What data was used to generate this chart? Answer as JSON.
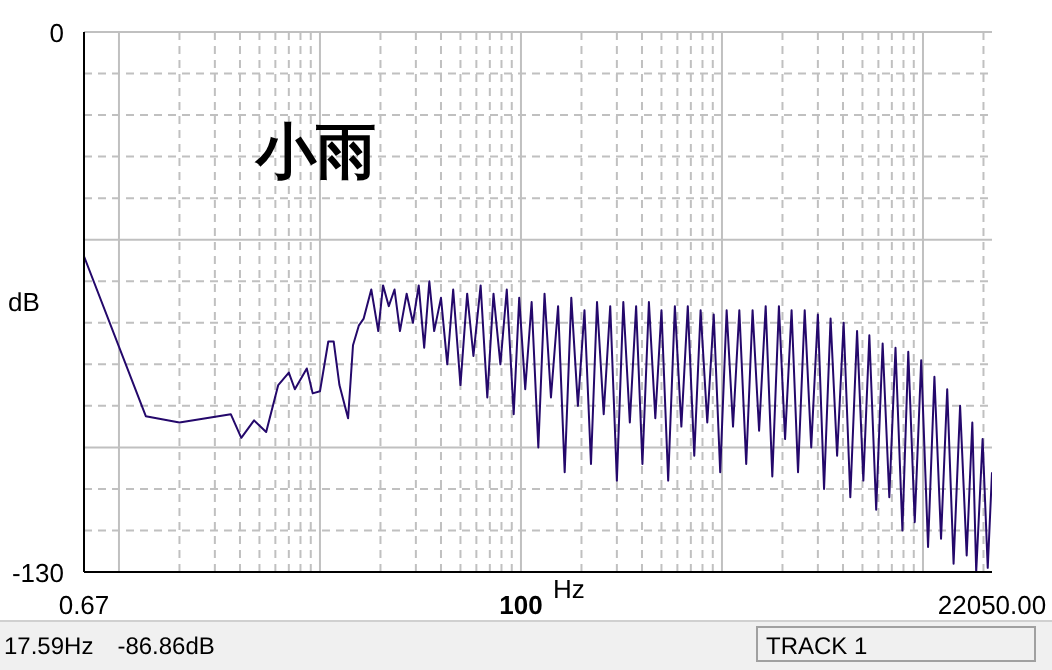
{
  "chart_data": {
    "type": "line",
    "title": "小雨",
    "xlabel": "Hz",
    "ylabel": "dB",
    "log": "x",
    "grid": true,
    "marker": "none",
    "line_style": "solid",
    "annotations": [
      "17.59Hz",
      "-86.86dB",
      "TRACK 1"
    ],
    "xlim": [
      0.67,
      22050
    ],
    "ylim": [
      -130,
      0
    ],
    "xticks": [
      {
        "value": 0.67,
        "label": "0.67"
      },
      {
        "value": 1,
        "label": null
      },
      {
        "value": 2,
        "label": null
      },
      {
        "value": 3,
        "label": null
      },
      {
        "value": 4,
        "label": null
      },
      {
        "value": 5,
        "label": null
      },
      {
        "value": 6,
        "label": null
      },
      {
        "value": 7,
        "label": null
      },
      {
        "value": 8,
        "label": null
      },
      {
        "value": 9,
        "label": null
      },
      {
        "value": 10,
        "label": null
      },
      {
        "value": 20,
        "label": null
      },
      {
        "value": 30,
        "label": null
      },
      {
        "value": 40,
        "label": null
      },
      {
        "value": 50,
        "label": null
      },
      {
        "value": 60,
        "label": null
      },
      {
        "value": 70,
        "label": null
      },
      {
        "value": 80,
        "label": null
      },
      {
        "value": 90,
        "label": null
      },
      {
        "value": 100,
        "label": "100"
      },
      {
        "value": 200,
        "label": null
      },
      {
        "value": 300,
        "label": null
      },
      {
        "value": 400,
        "label": null
      },
      {
        "value": 500,
        "label": null
      },
      {
        "value": 600,
        "label": null
      },
      {
        "value": 700,
        "label": null
      },
      {
        "value": 800,
        "label": null
      },
      {
        "value": 900,
        "label": null
      },
      {
        "value": 1000,
        "label": null
      },
      {
        "value": 2000,
        "label": null
      },
      {
        "value": 3000,
        "label": null
      },
      {
        "value": 4000,
        "label": null
      },
      {
        "value": 5000,
        "label": null
      },
      {
        "value": 6000,
        "label": null
      },
      {
        "value": 7000,
        "label": null
      },
      {
        "value": 8000,
        "label": null
      },
      {
        "value": 9000,
        "label": null
      },
      {
        "value": 10000,
        "label": null
      },
      {
        "value": 20000,
        "label": null
      },
      {
        "value": 22050,
        "label": "22050.00"
      }
    ],
    "yticks": [
      0,
      {
        "value": -10,
        "label": null
      },
      {
        "value": -20,
        "label": null
      },
      {
        "value": -30,
        "label": null
      },
      {
        "value": -40,
        "label": null
      },
      {
        "value": -50,
        "label": null
      },
      {
        "value": -60,
        "label": null
      },
      {
        "value": -70,
        "label": null
      },
      {
        "value": -80,
        "label": null
      },
      {
        "value": -90,
        "label": null
      },
      {
        "value": -100,
        "label": null
      },
      {
        "value": -110,
        "label": null
      },
      {
        "value": -120,
        "label": null
      },
      -130
    ],
    "series": [
      {
        "color": "#24086b",
        "x": [
          0.67,
          1.36,
          2.0,
          3.6,
          4.06,
          4.7,
          5.4,
          6.2,
          7.0,
          7.5,
          8.6,
          9.2,
          10,
          11,
          11.7,
          12.5,
          13.8,
          14.6,
          15.6,
          16.5,
          18,
          19.5,
          20.6,
          22,
          23.5,
          25,
          27,
          29,
          31,
          33,
          35,
          37,
          40,
          43,
          46,
          50,
          54,
          58,
          63,
          68,
          73,
          79,
          85,
          92,
          98,
          105,
          113,
          122,
          131,
          141,
          153,
          165,
          178,
          192,
          207,
          223,
          239,
          258,
          278,
          300,
          323,
          348,
          374,
          402,
          433,
          466,
          500,
          540,
          583,
          628,
          676,
          728,
          783,
          845,
          910,
          980,
          1055,
          1135,
          1220,
          1320,
          1420,
          1530,
          1650,
          1780,
          1920,
          2060,
          2220,
          2390,
          2580,
          2780,
          3000,
          3220,
          3470,
          3740,
          4030,
          4350,
          4700,
          5050,
          5410,
          5850,
          6300,
          6800,
          7300,
          7900,
          8450,
          9100,
          9800,
          10600,
          11400,
          12300,
          13200,
          14200,
          15300,
          16500,
          17600,
          18400,
          19800,
          21000,
          22050
        ],
        "values": [
          -54,
          -92.5,
          -94,
          -92,
          -97.7,
          -93.5,
          -96.3,
          -85,
          -82,
          -86,
          -81,
          -87,
          -86.5,
          -74.5,
          -74.5,
          -85,
          -93,
          -75.4,
          -70.7,
          -69,
          -62,
          -72,
          -61,
          -66,
          -62,
          -72,
          -63,
          -70,
          -61,
          -76,
          -60,
          -72,
          -64,
          -80,
          -62,
          -85,
          -63,
          -78,
          -61,
          -88,
          -63,
          -80,
          -62,
          -92,
          -64,
          -86,
          -65,
          -100,
          -63,
          -88,
          -66,
          -106,
          -64,
          -90,
          -67,
          -104,
          -65,
          -92,
          -66,
          -108,
          -65,
          -94,
          -66,
          -104,
          -65,
          -93,
          -67,
          -108,
          -66,
          -95,
          -66,
          -102,
          -67,
          -94,
          -68,
          -106,
          -67,
          -95,
          -67,
          -104,
          -67,
          -96,
          -66,
          -107,
          -66,
          -98,
          -67,
          -106,
          -67,
          -100,
          -68,
          -110,
          -69,
          -102,
          -70,
          -112,
          -72,
          -108,
          -73,
          -115,
          -75,
          -112,
          -76,
          -120,
          -77,
          -118,
          -79,
          -124,
          -83,
          -122,
          -86,
          -128,
          -90,
          -126,
          -94,
          -130,
          -98,
          -129,
          -106
        ]
      }
    ]
  }
}
